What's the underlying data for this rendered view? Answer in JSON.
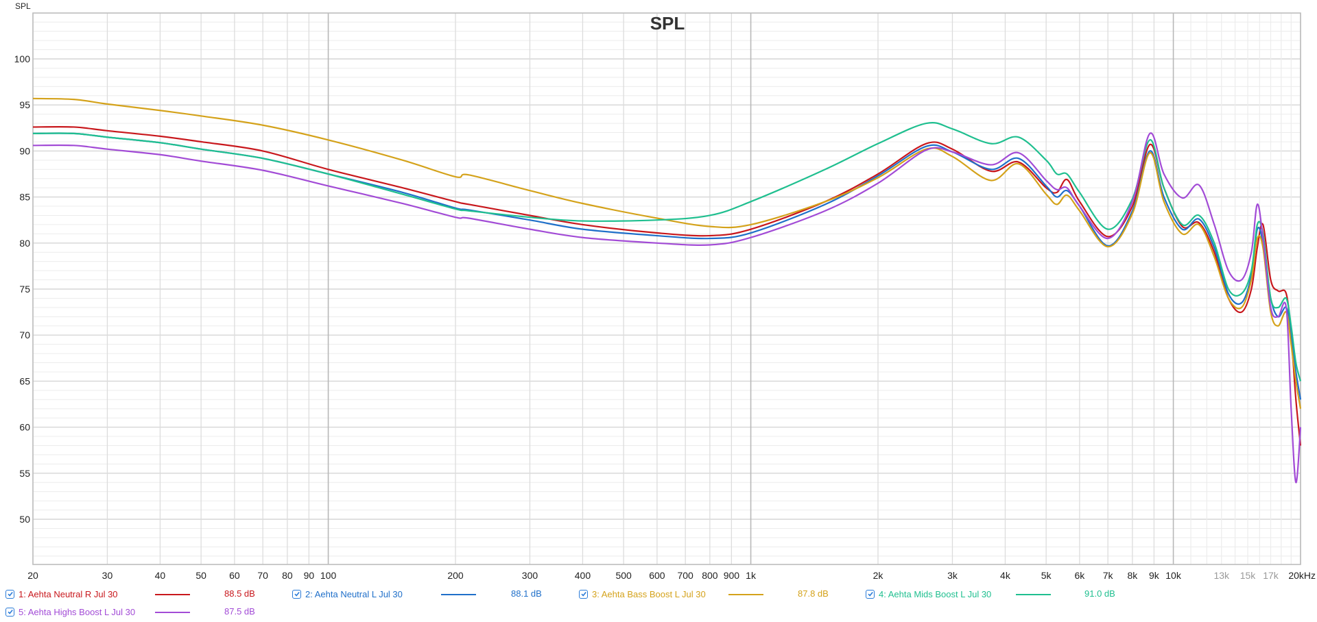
{
  "chart_data": {
    "type": "line",
    "title": "SPL",
    "xlabel": "",
    "ylabel": "SPL",
    "xscale": "log",
    "xlim": [
      20,
      20000
    ],
    "ylim": [
      45,
      105
    ],
    "grid": true,
    "legend_position": "bottom",
    "x_ticks": [
      {
        "v": 20,
        "label": "20"
      },
      {
        "v": 30,
        "label": "30"
      },
      {
        "v": 40,
        "label": "40"
      },
      {
        "v": 50,
        "label": "50"
      },
      {
        "v": 60,
        "label": "60"
      },
      {
        "v": 70,
        "label": "70"
      },
      {
        "v": 80,
        "label": "80"
      },
      {
        "v": 90,
        "label": "90"
      },
      {
        "v": 100,
        "label": "100"
      },
      {
        "v": 200,
        "label": "200"
      },
      {
        "v": 300,
        "label": "300"
      },
      {
        "v": 400,
        "label": "400"
      },
      {
        "v": 500,
        "label": "500"
      },
      {
        "v": 600,
        "label": "600"
      },
      {
        "v": 700,
        "label": "700"
      },
      {
        "v": 800,
        "label": "800"
      },
      {
        "v": 900,
        "label": "900"
      },
      {
        "v": 1000,
        "label": "1k"
      },
      {
        "v": 2000,
        "label": "2k"
      },
      {
        "v": 3000,
        "label": "3k"
      },
      {
        "v": 4000,
        "label": "4k"
      },
      {
        "v": 5000,
        "label": "5k"
      },
      {
        "v": 6000,
        "label": "6k"
      },
      {
        "v": 7000,
        "label": "7k"
      },
      {
        "v": 8000,
        "label": "8k"
      },
      {
        "v": 9000,
        "label": "9k"
      },
      {
        "v": 10000,
        "label": "10k"
      },
      {
        "v": 13000,
        "label": "13k",
        "dim": true
      },
      {
        "v": 15000,
        "label": "15k",
        "dim": true
      },
      {
        "v": 17000,
        "label": "17k",
        "dim": true
      },
      {
        "v": 20000,
        "label": "20kHz"
      }
    ],
    "y_ticks": [
      50,
      55,
      60,
      65,
      70,
      75,
      80,
      85,
      90,
      95,
      100
    ],
    "x": [
      20,
      25,
      30,
      40,
      50,
      70,
      100,
      150,
      200,
      215,
      300,
      400,
      600,
      800,
      1000,
      1500,
      2000,
      2600,
      3000,
      3700,
      4300,
      5000,
      5300,
      5600,
      6000,
      7000,
      8000,
      8800,
      9500,
      10500,
      11500,
      12500,
      13500,
      14500,
      15300,
      15800,
      16300,
      17000,
      17700,
      18500,
      19000,
      19500,
      20000
    ],
    "series": [
      {
        "name": "1: Aehta Neutral R Jul 30",
        "color": "#c8171c",
        "level": "88.5 dB",
        "values": [
          92.6,
          92.6,
          92.2,
          91.6,
          91.0,
          90.0,
          88.0,
          86.0,
          84.5,
          84.2,
          83.0,
          82.0,
          81.1,
          80.8,
          81.5,
          84.5,
          87.5,
          90.8,
          90.2,
          87.8,
          88.8,
          86.0,
          85.5,
          86.9,
          84.5,
          80.7,
          84.0,
          90.7,
          86.0,
          81.8,
          82.2,
          79.0,
          74.0,
          72.5,
          75.0,
          79.5,
          82.0,
          76.0,
          74.8,
          74.5,
          70.0,
          63.0,
          58.0
        ]
      },
      {
        "name": "2: Aehta Neutral L Jul 30",
        "color": "#1f6fc9",
        "level": "88.1 dB",
        "values": [
          91.9,
          91.9,
          91.5,
          90.9,
          90.2,
          89.2,
          87.5,
          85.5,
          83.8,
          83.6,
          82.5,
          81.5,
          80.8,
          80.5,
          81.1,
          84.2,
          87.3,
          90.5,
          89.9,
          88.0,
          89.2,
          86.2,
          85.0,
          85.7,
          84.0,
          79.7,
          83.5,
          90.0,
          85.0,
          81.5,
          82.6,
          79.5,
          74.5,
          73.5,
          76.5,
          81.5,
          80.0,
          74.0,
          72.0,
          73.0,
          70.0,
          66.0,
          63.0
        ]
      },
      {
        "name": "3: Aehta Bass Boost L Jul 30",
        "color": "#d4a21a",
        "level": "87.8 dB",
        "values": [
          95.7,
          95.6,
          95.1,
          94.4,
          93.8,
          92.8,
          91.2,
          89.0,
          87.2,
          87.4,
          85.7,
          84.3,
          82.7,
          81.8,
          82.0,
          84.5,
          87.1,
          90.2,
          89.4,
          86.8,
          88.6,
          85.3,
          84.2,
          85.2,
          83.5,
          79.6,
          83.2,
          89.8,
          84.5,
          81.0,
          82.0,
          78.5,
          74.0,
          73.0,
          76.0,
          80.5,
          79.5,
          72.5,
          71.0,
          72.5,
          69.0,
          65.0,
          62.0
        ]
      },
      {
        "name": "4: Aehta Mids Boost L Jul 30",
        "color": "#1fbf8f",
        "level": "91.0 dB",
        "values": [
          91.9,
          91.9,
          91.5,
          90.9,
          90.2,
          89.2,
          87.5,
          85.3,
          83.7,
          83.5,
          82.8,
          82.4,
          82.5,
          83.0,
          84.5,
          88.0,
          90.8,
          93.0,
          92.4,
          90.8,
          91.5,
          89.0,
          87.5,
          87.5,
          85.5,
          81.5,
          84.8,
          91.2,
          86.0,
          82.0,
          83.0,
          80.0,
          75.0,
          74.5,
          77.0,
          82.0,
          81.0,
          74.0,
          73.0,
          74.0,
          71.0,
          67.0,
          65.0
        ]
      },
      {
        "name": "5: Aehta Highs Boost L Jul 30",
        "color": "#a24bd6",
        "level": "87.5 dB",
        "values": [
          90.6,
          90.6,
          90.2,
          89.6,
          88.9,
          87.9,
          86.2,
          84.3,
          82.8,
          82.7,
          81.5,
          80.6,
          80.0,
          79.8,
          80.6,
          83.5,
          86.5,
          90.1,
          89.9,
          88.5,
          89.8,
          86.8,
          85.8,
          86.0,
          84.0,
          80.5,
          84.5,
          91.9,
          87.5,
          84.9,
          86.3,
          82.0,
          77.0,
          76.0,
          79.0,
          84.2,
          80.5,
          73.0,
          72.0,
          73.0,
          62.0,
          54.0,
          60.0
        ]
      }
    ]
  },
  "axis": {
    "y_title": "SPL"
  },
  "legend": {
    "items": [
      {
        "label": "1: Aehta Neutral R Jul 30",
        "value": "88.5 dB",
        "checked": true
      },
      {
        "label": "2: Aehta Neutral L Jul 30",
        "value": "88.1 dB",
        "checked": true
      },
      {
        "label": "3: Aehta Bass Boost L Jul 30",
        "value": "87.8 dB",
        "checked": true
      },
      {
        "label": "4: Aehta Mids Boost L Jul 30",
        "value": "91.0 dB",
        "checked": true
      },
      {
        "label": "5: Aehta Highs Boost L Jul 30",
        "value": "87.5 dB",
        "checked": true
      }
    ]
  }
}
